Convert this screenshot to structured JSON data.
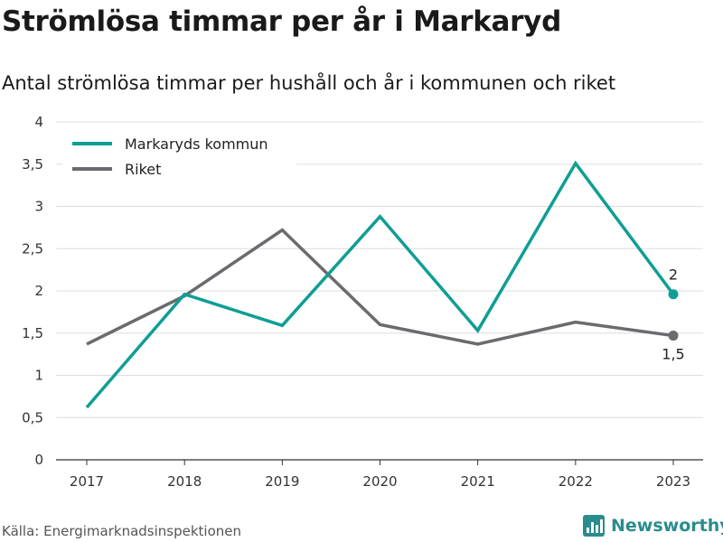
{
  "title": "Strömlösa timmar per år i Markaryd",
  "subtitle": "Antal strömlösa timmar per hushåll och år i kommunen och riket",
  "source": "Källa: Energimarknadsinspektionen",
  "brand": {
    "name": "Newsworthy",
    "icon": "bar-chart-icon",
    "color": "#2a8c8c"
  },
  "chart_data": {
    "type": "line",
    "x": [
      "2017",
      "2018",
      "2019",
      "2020",
      "2021",
      "2022",
      "2023"
    ],
    "series": [
      {
        "name": "Markaryds kommun",
        "color": "#0f9e94",
        "values": [
          0.62,
          1.96,
          1.59,
          2.88,
          1.53,
          3.51,
          1.96
        ],
        "end_label": "2"
      },
      {
        "name": "Riket",
        "color": "#6a6a6f",
        "values": [
          1.37,
          1.94,
          2.72,
          1.6,
          1.37,
          1.63,
          1.47
        ],
        "end_label": "1,5"
      }
    ],
    "yticks": [
      "0",
      "0,5",
      "1",
      "1,5",
      "2",
      "2,5",
      "3",
      "3,5",
      "4"
    ],
    "ylim": [
      0,
      4
    ],
    "grid": true,
    "legend": "top-left"
  }
}
